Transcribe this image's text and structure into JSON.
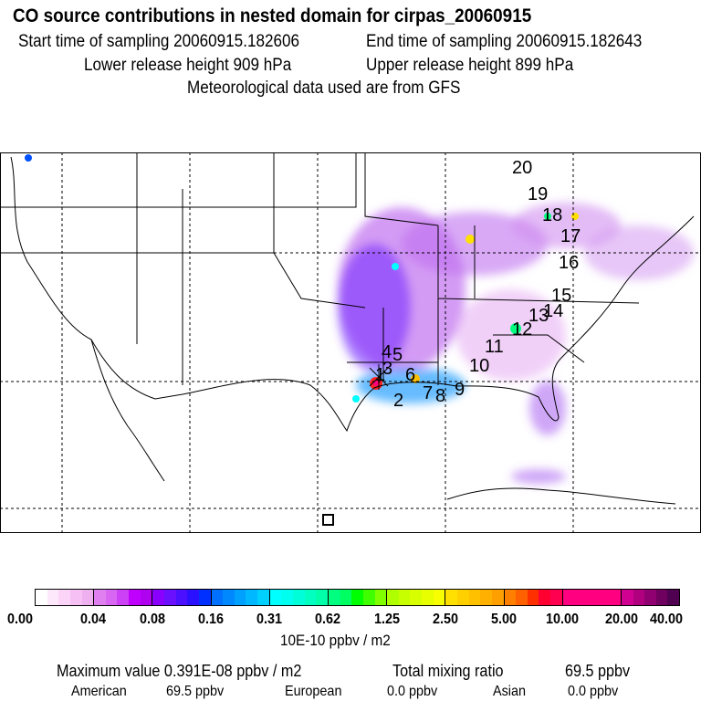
{
  "header": {
    "title": "CO  source contributions in nested domain for cirpas_20060915",
    "start_time": "Start time of sampling 20060915.182606",
    "end_time": "End time of sampling 20060915.182643",
    "lower_release": "Lower release height  909 hPa",
    "upper_release": "Upper release height  899 hPa",
    "met_data": "Meteorological data used are from GFS"
  },
  "map": {
    "track_labels": [
      "1",
      "2",
      "3",
      "4",
      "5",
      "6",
      "7",
      "8",
      "9",
      "10",
      "11",
      "12",
      "13",
      "14",
      "15",
      "16",
      "17",
      "18",
      "19",
      "20"
    ]
  },
  "colorbar": {
    "ticks": [
      "0.00",
      "0.04",
      "0.08",
      "0.16",
      "0.31",
      "0.62",
      "1.25",
      "2.50",
      "5.00",
      "10.00",
      "20.00",
      "40.00"
    ],
    "unit": "10E-10 ppbv / m2",
    "colors": [
      [
        "#ffffff",
        "#fde8fb",
        "#fbd4f8",
        "#f6c0f4",
        "#efb0f0"
      ],
      [
        "#e080f0",
        "#d866f2",
        "#cc40f6",
        "#c000ff",
        "#b000f0"
      ],
      [
        "#8a00ff",
        "#6a10ff",
        "#4a10ff",
        "#2a10ff",
        "#0030ff"
      ],
      [
        "#0070ff",
        "#0088ff",
        "#00a0ff",
        "#00b8ff",
        "#00d0ff"
      ],
      [
        "#00ffff",
        "#00ffee",
        "#00ffd8",
        "#00ffc0",
        "#00ffa8"
      ],
      [
        "#00ff80",
        "#00ff60",
        "#00ff00",
        "#40ff00",
        "#80ff00"
      ],
      [
        "#b0ff00",
        "#c8ff00",
        "#d8ff00",
        "#e8ff00",
        "#f8ff00"
      ],
      [
        "#ffe000",
        "#ffd000",
        "#ffc000",
        "#ffb000",
        "#ffa000"
      ],
      [
        "#ff8000",
        "#ff6000",
        "#ff3000",
        "#ff0030",
        "#ff0050"
      ],
      [
        "#ff0080",
        "#ff0080",
        "#ff0080",
        "#ff0080",
        "#ff0080"
      ],
      [
        "#d00090",
        "#b00080",
        "#900070",
        "#700060",
        "#500050"
      ]
    ]
  },
  "footer": {
    "max_label": "Maximum value  0.391E-08 ppbv / m2",
    "total_label": "Total mixing ratio",
    "total_value": "69.5 ppbv",
    "american_label": "American",
    "american_value": "69.5 ppbv",
    "european_label": "European",
    "european_value": "0.0 ppbv",
    "asian_label": "Asian",
    "asian_value": "0.0 ppbv"
  }
}
